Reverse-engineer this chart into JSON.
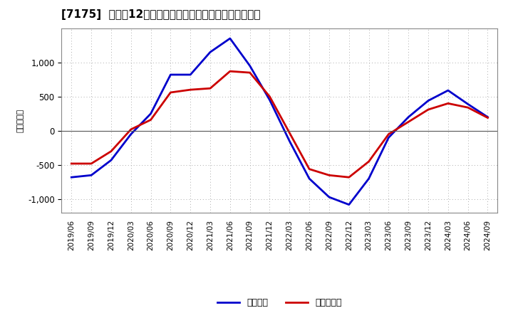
{
  "title": "[7175]  利益だ12か月移動合計の対前年同期増減額の推移",
  "ylabel": "（百万円）",
  "background_color": "#ffffff",
  "plot_background": "#ffffff",
  "grid_color": "#aaaaaa",
  "x_labels": [
    "2019/06",
    "2019/09",
    "2019/12",
    "2020/03",
    "2020/06",
    "2020/09",
    "2020/12",
    "2021/03",
    "2021/06",
    "2021/09",
    "2021/12",
    "2022/03",
    "2022/06",
    "2022/09",
    "2022/12",
    "2023/03",
    "2023/06",
    "2023/09",
    "2023/12",
    "2024/03",
    "2024/06",
    "2024/09"
  ],
  "operating_profit": [
    -680,
    -650,
    -430,
    -50,
    250,
    820,
    820,
    1150,
    1350,
    950,
    450,
    -150,
    -700,
    -970,
    -1080,
    -700,
    -100,
    200,
    440,
    590,
    390,
    200
  ],
  "net_profit": [
    -480,
    -480,
    -300,
    20,
    160,
    560,
    600,
    620,
    870,
    850,
    500,
    -30,
    -560,
    -650,
    -680,
    -450,
    -50,
    130,
    310,
    400,
    340,
    190
  ],
  "ylim": [
    -1200,
    1500
  ],
  "yticks": [
    -1000,
    -500,
    0,
    500,
    1000
  ],
  "line_color_operating": "#0000cc",
  "line_color_net": "#cc0000",
  "legend_labels": [
    "経常利益",
    "当期純利益"
  ],
  "line_width": 2.0
}
